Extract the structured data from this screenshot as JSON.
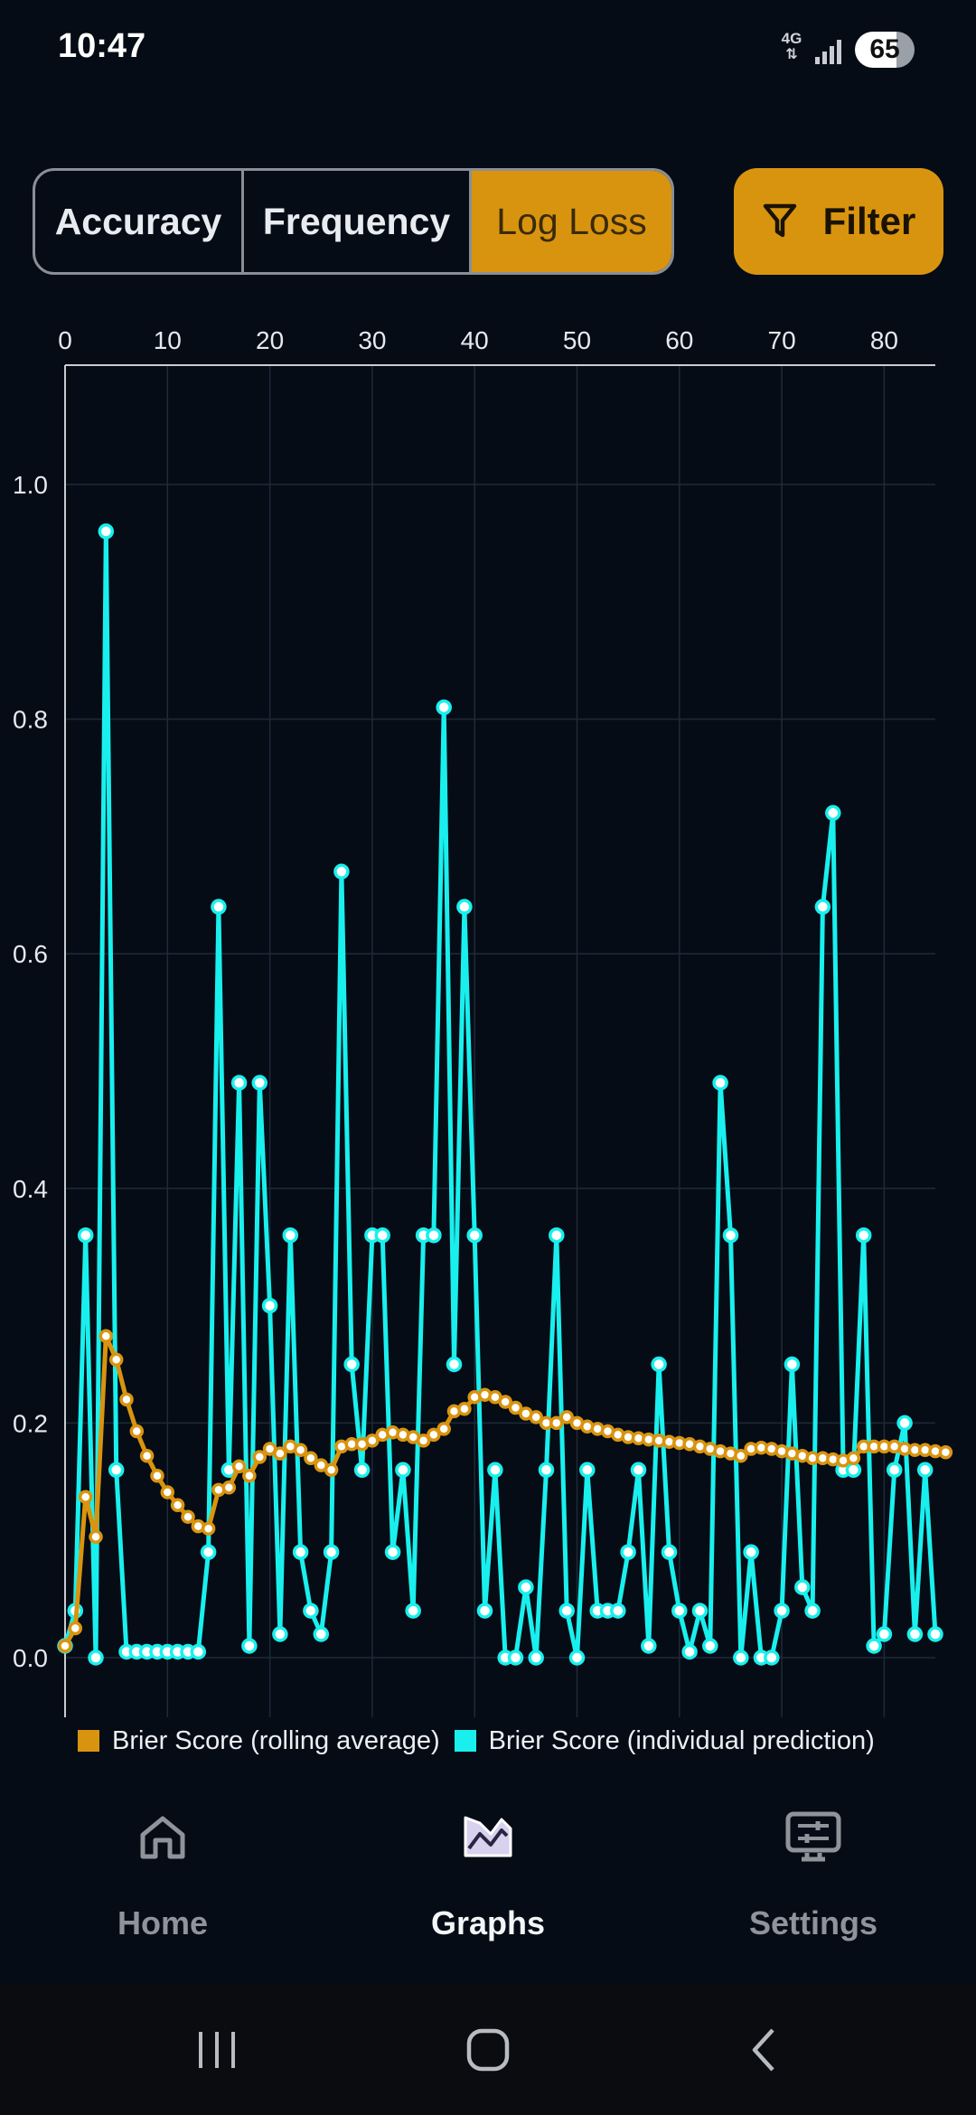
{
  "status_bar": {
    "time": "10:47",
    "network": "4G",
    "battery": "65"
  },
  "tabs": [
    {
      "label": "Accuracy",
      "selected": false
    },
    {
      "label": "Frequency",
      "selected": false
    },
    {
      "label": "Log Loss",
      "selected": true
    }
  ],
  "filter_button": {
    "label": "Filter",
    "icon": "filter-icon"
  },
  "chart_data": {
    "type": "line",
    "x_ticks": [
      0,
      10,
      20,
      30,
      40,
      50,
      60,
      70,
      80
    ],
    "y_ticks": [
      "0.0",
      "0.2",
      "0.4",
      "0.6",
      "0.8",
      "1.0"
    ],
    "xlim": [
      0,
      85
    ],
    "ylim": [
      -0.05,
      1.1
    ],
    "grid": true,
    "legend_placement": "bottom",
    "series": [
      {
        "name": "Brier Score (rolling average)",
        "color": "#d9940f",
        "values": [
          0.01,
          0.025,
          0.137,
          0.103,
          0.274,
          0.254,
          0.22,
          0.193,
          0.172,
          0.155,
          0.141,
          0.13,
          0.12,
          0.112,
          0.11,
          0.143,
          0.145,
          0.163,
          0.155,
          0.171,
          0.178,
          0.174,
          0.18,
          0.177,
          0.17,
          0.164,
          0.16,
          0.18,
          0.182,
          0.182,
          0.185,
          0.19,
          0.192,
          0.19,
          0.188,
          0.185,
          0.19,
          0.195,
          0.21,
          0.212,
          0.222,
          0.224,
          0.222,
          0.218,
          0.213,
          0.208,
          0.205,
          0.2,
          0.2,
          0.205,
          0.2,
          0.197,
          0.195,
          0.193,
          0.19,
          0.188,
          0.187,
          0.186,
          0.185,
          0.184,
          0.183,
          0.182,
          0.18,
          0.178,
          0.176,
          0.174,
          0.172,
          0.178,
          0.179,
          0.178,
          0.176,
          0.174,
          0.172,
          0.17,
          0.17,
          0.169,
          0.168,
          0.17,
          0.18,
          0.18,
          0.18,
          0.18,
          0.178,
          0.177,
          0.177,
          0.176,
          0.175
        ]
      },
      {
        "name": "Brier Score (individual prediction)",
        "color": "#19f0ee",
        "values": [
          0.01,
          0.04,
          0.36,
          0.0,
          0.96,
          0.16,
          0.005,
          0.005,
          0.005,
          0.005,
          0.005,
          0.005,
          0.005,
          0.005,
          0.09,
          0.64,
          0.16,
          0.49,
          0.01,
          0.49,
          0.3,
          0.02,
          0.36,
          0.09,
          0.04,
          0.02,
          0.09,
          0.67,
          0.25,
          0.16,
          0.36,
          0.36,
          0.09,
          0.16,
          0.04,
          0.36,
          0.36,
          0.81,
          0.25,
          0.64,
          0.36,
          0.04,
          0.16,
          0.0,
          0.0,
          0.06,
          0.0,
          0.16,
          0.36,
          0.04,
          0.0,
          0.16,
          0.04,
          0.04,
          0.04,
          0.09,
          0.16,
          0.01,
          0.25,
          0.09,
          0.04,
          0.005,
          0.04,
          0.01,
          0.49,
          0.36,
          0.0,
          0.09,
          0.0,
          0.0,
          0.04,
          0.25,
          0.06,
          0.04,
          0.64,
          0.72,
          0.16,
          0.16,
          0.36,
          0.01,
          0.02,
          0.16,
          0.2,
          0.02,
          0.16,
          0.02
        ]
      }
    ]
  },
  "nav": {
    "home": {
      "label": "Home",
      "icon": "home-icon"
    },
    "graphs": {
      "label": "Graphs",
      "icon": "graphs-icon"
    },
    "settings": {
      "label": "Settings",
      "icon": "settings-icon"
    }
  },
  "colors": {
    "accent": "#d9940f",
    "cyan": "#19f0ee",
    "background": "#050c16"
  }
}
